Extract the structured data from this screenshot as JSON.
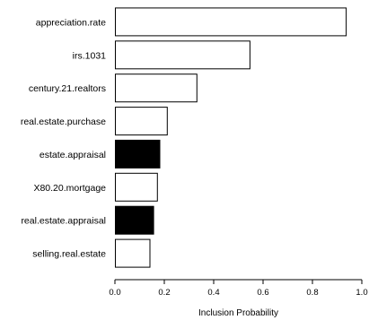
{
  "chart_data": {
    "type": "bar",
    "orientation": "horizontal",
    "categories": [
      "appreciation.rate",
      "irs.1031",
      "century.21.realtors",
      "real.estate.purchase",
      "estate.appraisal",
      "X80.20.mortgage",
      "real.estate.appraisal",
      "selling.real.estate"
    ],
    "values": [
      0.935,
      0.545,
      0.33,
      0.21,
      0.18,
      0.17,
      0.155,
      0.14
    ],
    "bar_fill": [
      "open",
      "open",
      "open",
      "open",
      "filled",
      "open",
      "filled",
      "open"
    ],
    "xlabel": "Inclusion Probability",
    "ylabel": "",
    "xlim": [
      0,
      1
    ],
    "x_ticks": [
      "0.0",
      "0.2",
      "0.4",
      "0.6",
      "0.8",
      "1.0"
    ],
    "grid": false,
    "colors": {
      "filled": "#000000",
      "open": "#ffffff",
      "stroke": "#000000"
    }
  }
}
